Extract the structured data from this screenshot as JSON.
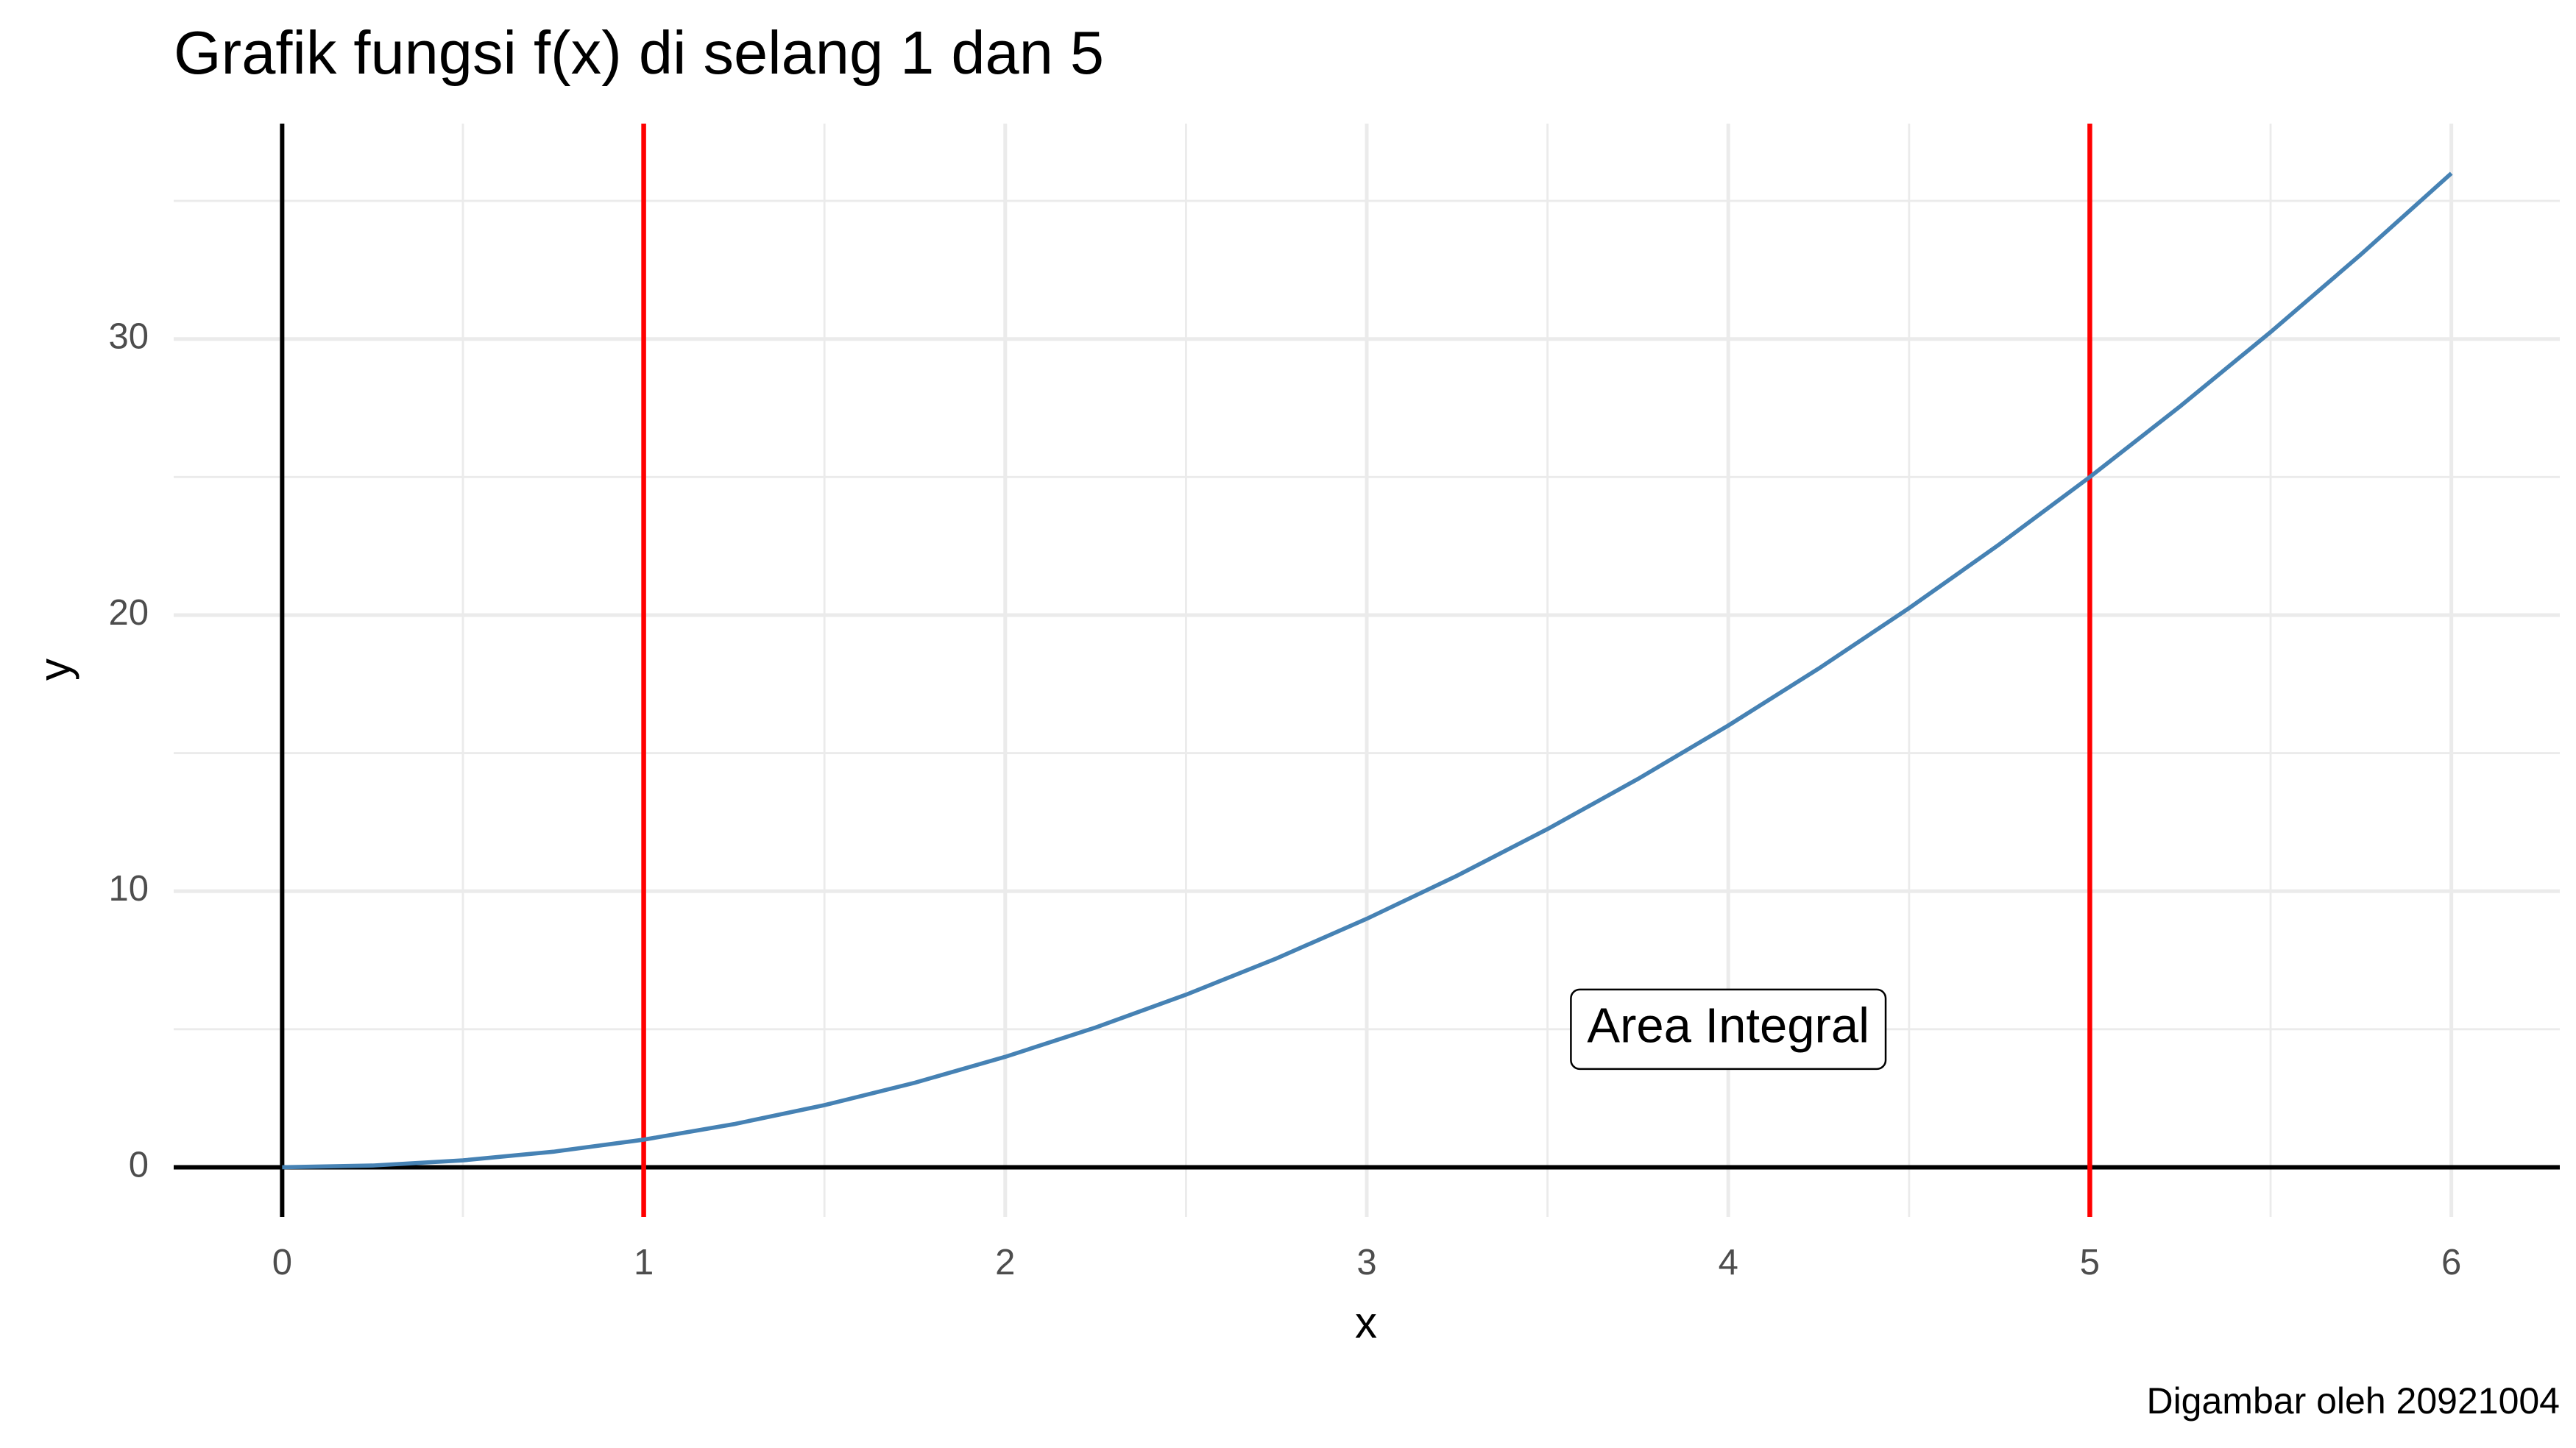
{
  "chart_data": {
    "type": "line",
    "title": "Grafik fungsi f(x) di selang 1 dan 5",
    "x_label": "x",
    "y_label": "y",
    "caption": "Digambar oleh 20921004",
    "color": "#4682b4",
    "x": [
      0,
      0.25,
      0.5,
      0.75,
      1,
      1.25,
      1.5,
      1.75,
      2,
      2.25,
      2.5,
      2.75,
      3,
      3.25,
      3.5,
      3.75,
      4,
      4.25,
      4.5,
      4.75,
      5,
      5.25,
      5.5,
      5.75,
      6
    ],
    "values": [
      0,
      0.0625,
      0.25,
      0.5625,
      1,
      1.5625,
      2.25,
      3.0625,
      4,
      5.0625,
      6.25,
      7.5625,
      9,
      10.5625,
      12.25,
      14.0625,
      16,
      18.0625,
      20.25,
      22.5625,
      25,
      27.5625,
      30.25,
      33.0625,
      36
    ],
    "xlim": [
      -0.3,
      6.3
    ],
    "ylim": [
      -1.8,
      37.8
    ],
    "xticks": [
      0,
      1,
      2,
      3,
      4,
      5,
      6
    ],
    "yticks": [
      0,
      10,
      20,
      30
    ],
    "x_minor_grid": [
      0.5,
      1.5,
      2.5,
      3.5,
      4.5,
      5.5
    ],
    "y_minor_grid": [
      5,
      15,
      25,
      35
    ],
    "grid": true,
    "axis_lines": {
      "x": 0,
      "y": 0,
      "color": "#000000"
    },
    "vlines": [
      {
        "x": 1,
        "color": "#ff0000"
      },
      {
        "x": 5,
        "color": "#ff0000"
      }
    ],
    "annotation": {
      "text": "Area Integral",
      "x": 4,
      "y": 5
    }
  }
}
